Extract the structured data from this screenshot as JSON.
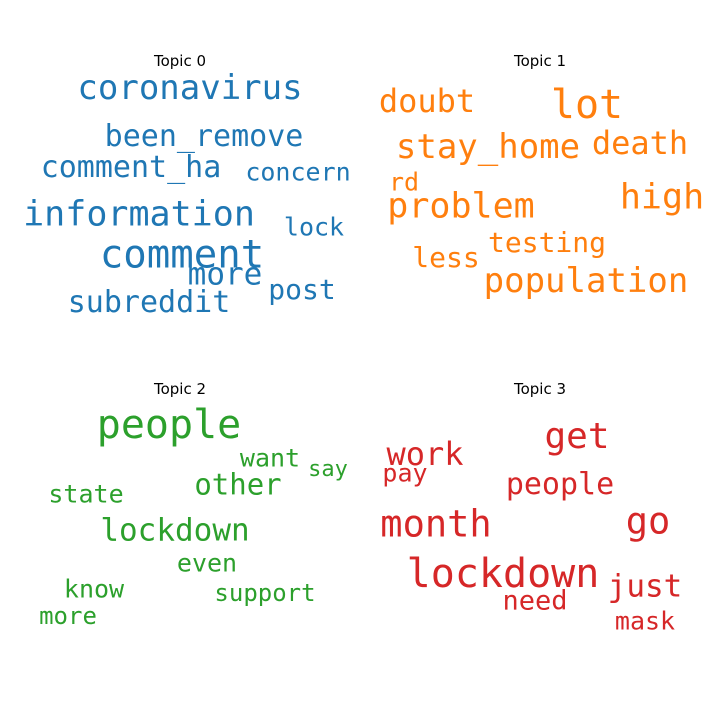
{
  "topics": [
    {
      "title": "Topic 0",
      "color": "#1f77b4",
      "words": [
        "coronavirus",
        "been_remove",
        "comment_ha",
        "concern",
        "information",
        "lock",
        "comment",
        "more",
        "post",
        "subreddit"
      ]
    },
    {
      "title": "Topic 1",
      "color": "#ff7f0e",
      "words": [
        "doubt",
        "lot",
        "stay_home",
        "death",
        "rd",
        "problem",
        "high",
        "testing",
        "less",
        "population"
      ]
    },
    {
      "title": "Topic 2",
      "color": "#2ca02c",
      "words": [
        "people",
        "want",
        "say",
        "other",
        "state",
        "lockdown",
        "even",
        "know",
        "support",
        "more"
      ]
    },
    {
      "title": "Topic 3",
      "color": "#d62728",
      "words": [
        "get",
        "work",
        "pay",
        "people",
        "month",
        "go",
        "lockdown",
        "just",
        "need",
        "mask"
      ]
    }
  ]
}
